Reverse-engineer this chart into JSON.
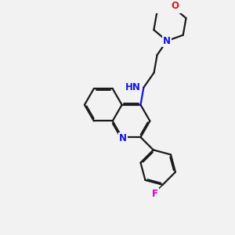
{
  "background_color": "#f2f2f2",
  "bond_color": "#1a1a1a",
  "nitrogen_color": "#1414e0",
  "oxygen_color": "#e01414",
  "fluorine_color": "#cc00cc",
  "line_width": 1.6,
  "dbo": 0.055,
  "figsize": [
    3.0,
    3.0
  ],
  "dpi": 100,
  "xlim": [
    0,
    10
  ],
  "ylim": [
    0,
    10
  ]
}
